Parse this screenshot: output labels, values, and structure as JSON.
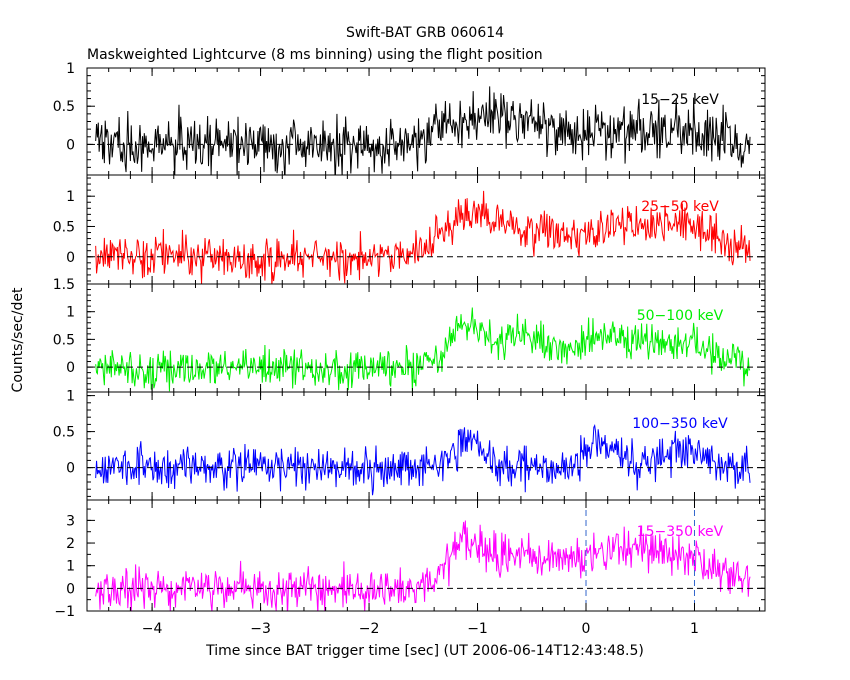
{
  "chart_data": {
    "type": "line",
    "title": "Swift-BAT GRB 060614",
    "subtitle": "Maskweighted Lightcurve (8 ms binning) using the flight position",
    "xlabel": "Time since BAT trigger time [sec] (UT 2006-06-14T12:43:48.5)",
    "ylabel": "Counts/sec/det",
    "xlim": [
      -4.6,
      1.65
    ],
    "x_ticks": [
      "−4",
      "−3",
      "−2",
      "−1",
      "0",
      "1"
    ],
    "x_tick_values": [
      -4,
      -3,
      -2,
      -1,
      0,
      1
    ],
    "bin_width_sec": 0.008,
    "x_range_data": [
      -4.52,
      1.52
    ],
    "panels": [
      {
        "name": "15-25 keV",
        "label": "15−25 keV",
        "color": "#000000",
        "ylim": [
          -0.4,
          1.0
        ],
        "y_ticks": [
          "1",
          "0.5",
          "0"
        ],
        "y_tick_values": [
          1,
          0.5,
          0
        ],
        "baseline": 0,
        "noise": 0.18,
        "pulses": [
          {
            "center": -1.1,
            "width": 0.3,
            "amp": 0.25
          },
          {
            "center": -0.6,
            "width": 0.35,
            "amp": 0.2
          },
          {
            "center": 0.6,
            "width": 0.6,
            "amp": 0.2
          }
        ]
      },
      {
        "name": "25-50 keV",
        "label": "25−50 keV",
        "color": "#ff0000",
        "ylim": [
          -0.45,
          1.35
        ],
        "y_ticks": [
          "1",
          "0.5",
          "0"
        ],
        "y_tick_values": [
          1,
          0.5,
          0
        ],
        "baseline": 0,
        "noise": 0.17,
        "pulses": [
          {
            "center": -1.1,
            "width": 0.2,
            "amp": 0.65
          },
          {
            "center": -0.6,
            "width": 0.3,
            "amp": 0.45
          },
          {
            "center": 0.3,
            "width": 0.35,
            "amp": 0.45
          },
          {
            "center": 0.95,
            "width": 0.3,
            "amp": 0.45
          }
        ]
      },
      {
        "name": "50-100 keV",
        "label": "50−100 keV",
        "color": "#00ee00",
        "ylim": [
          -0.45,
          1.5
        ],
        "y_ticks": [
          "1.5",
          "1",
          "0.5",
          "0"
        ],
        "y_tick_values": [
          1.5,
          1,
          0.5,
          0
        ],
        "baseline": 0,
        "noise": 0.17,
        "pulses": [
          {
            "center": -1.1,
            "width": 0.18,
            "amp": 0.7
          },
          {
            "center": -0.55,
            "width": 0.2,
            "amp": 0.55
          },
          {
            "center": 0.15,
            "width": 0.25,
            "amp": 0.55
          },
          {
            "center": 0.85,
            "width": 0.3,
            "amp": 0.45
          }
        ]
      },
      {
        "name": "100-350 keV",
        "label": "100−350 keV",
        "color": "#0000ff",
        "ylim": [
          -0.45,
          1.05
        ],
        "y_ticks": [
          "1",
          "0.5",
          "0"
        ],
        "y_tick_values": [
          1,
          0.5,
          0
        ],
        "baseline": 0,
        "noise": 0.14,
        "pulses": [
          {
            "center": -1.1,
            "width": 0.12,
            "amp": 0.4
          },
          {
            "center": 0.15,
            "width": 0.15,
            "amp": 0.35
          },
          {
            "center": 0.85,
            "width": 0.2,
            "amp": 0.25
          }
        ]
      },
      {
        "name": "15-350 keV",
        "label": "15−350 keV",
        "color": "#ff00ff",
        "ylim": [
          -1.0,
          3.9
        ],
        "y_ticks": [
          "3",
          "2",
          "1",
          "0",
          "−1"
        ],
        "y_tick_values": [
          3,
          2,
          1,
          0,
          -1
        ],
        "baseline": 0,
        "noise": 0.45,
        "pulses": [
          {
            "center": -1.1,
            "width": 0.18,
            "amp": 1.8
          },
          {
            "center": -0.55,
            "width": 0.3,
            "amp": 1.4
          },
          {
            "center": 0.25,
            "width": 0.35,
            "amp": 1.5
          },
          {
            "center": 0.9,
            "width": 0.35,
            "amp": 1.2
          }
        ],
        "markers": [
          0,
          1
        ]
      }
    ]
  },
  "colors": {
    "marker_line": "#3366cc",
    "zero_line": "#000000",
    "axis": "#000000"
  }
}
